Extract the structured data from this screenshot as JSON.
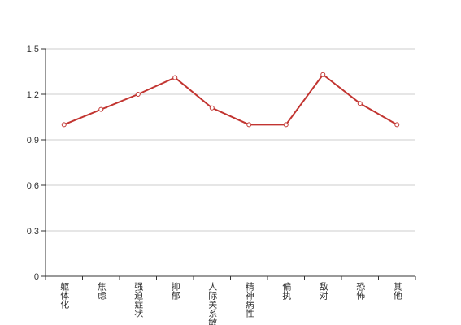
{
  "chart_data": {
    "type": "line",
    "categories": [
      "躯体化",
      "焦虑",
      "强迫症状",
      "抑郁",
      "人际关系敏感",
      "精神病性",
      "偏执",
      "敌对",
      "恐怖",
      "其他"
    ],
    "values": [
      1.0,
      1.1,
      1.2,
      1.31,
      1.11,
      1.0,
      1.0,
      1.33,
      1.14,
      1.0
    ],
    "color": "#c23531",
    "ylim": [
      0,
      1.5
    ],
    "yticks": [
      0,
      {
        "value": 0.3,
        "label": "0.3"
      },
      {
        "value": 0.6,
        "label": "0.6"
      },
      {
        "value": 0.9,
        "label": "0.9"
      },
      {
        "value": 1.2,
        "label": "1.2"
      },
      {
        "value": 1.5,
        "label": "1.5"
      }
    ],
    "grid": true
  }
}
